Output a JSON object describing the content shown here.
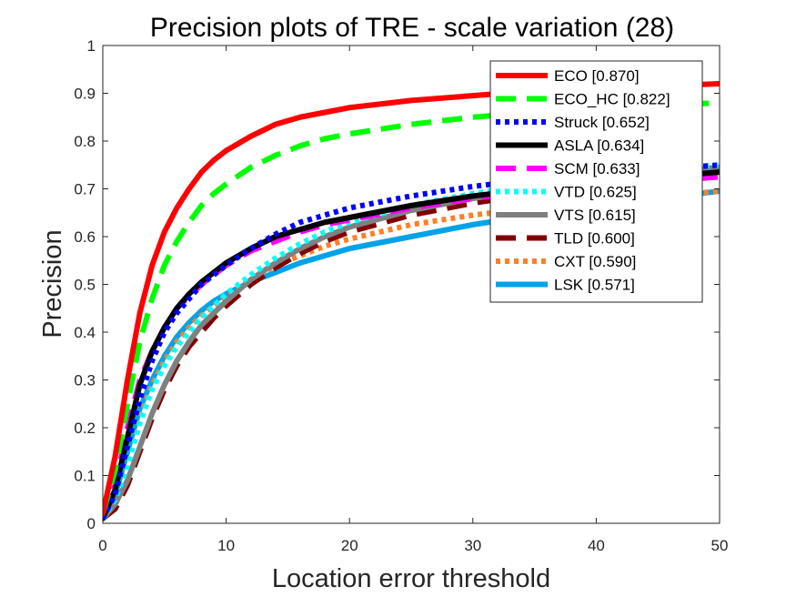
{
  "chart_data": {
    "type": "line",
    "title": "Precision plots of TRE - scale variation (28)",
    "xlabel": "Location error threshold",
    "ylabel": "Precision",
    "xlim": [
      0,
      50
    ],
    "ylim": [
      0,
      1
    ],
    "xticks": [
      0,
      10,
      20,
      30,
      40,
      50
    ],
    "yticks": [
      0,
      0.1,
      0.2,
      0.3,
      0.4,
      0.5,
      0.6,
      0.7,
      0.8,
      0.9,
      1
    ],
    "ytick_labels": [
      "0",
      "0.1",
      "0.2",
      "0.3",
      "0.4",
      "0.5",
      "0.6",
      "0.7",
      "0.8",
      "0.9",
      "1"
    ],
    "grid": false,
    "legend_position": "top-right",
    "x": [
      0,
      1,
      2,
      3,
      4,
      5,
      6,
      7,
      8,
      9,
      10,
      12,
      14,
      16,
      18,
      20,
      25,
      30,
      35,
      40,
      45,
      50
    ],
    "series": [
      {
        "name": "ECO [0.870]",
        "color": "#ff0000",
        "dash": "solid",
        "values": [
          0.02,
          0.14,
          0.3,
          0.44,
          0.54,
          0.61,
          0.66,
          0.7,
          0.735,
          0.76,
          0.78,
          0.81,
          0.835,
          0.85,
          0.86,
          0.87,
          0.885,
          0.895,
          0.905,
          0.91,
          0.915,
          0.92
        ]
      },
      {
        "name": "ECO_HC [0.822]",
        "color": "#00ff00",
        "dash": "dashed",
        "values": [
          0.02,
          0.11,
          0.25,
          0.38,
          0.47,
          0.54,
          0.59,
          0.63,
          0.665,
          0.69,
          0.71,
          0.745,
          0.77,
          0.79,
          0.805,
          0.815,
          0.835,
          0.85,
          0.86,
          0.87,
          0.875,
          0.88
        ]
      },
      {
        "name": "Struck [0.652]",
        "color": "#0000ff",
        "dash": "dotted",
        "values": [
          0.01,
          0.06,
          0.16,
          0.26,
          0.34,
          0.4,
          0.44,
          0.47,
          0.5,
          0.52,
          0.54,
          0.575,
          0.605,
          0.63,
          0.645,
          0.66,
          0.685,
          0.705,
          0.72,
          0.73,
          0.74,
          0.75
        ]
      },
      {
        "name": "ASLA [0.634]",
        "color": "#000000",
        "dash": "solid",
        "values": [
          0.01,
          0.07,
          0.18,
          0.29,
          0.36,
          0.41,
          0.45,
          0.48,
          0.505,
          0.525,
          0.545,
          0.575,
          0.6,
          0.615,
          0.63,
          0.64,
          0.665,
          0.685,
          0.7,
          0.715,
          0.725,
          0.735
        ]
      },
      {
        "name": "SCM [0.633]",
        "color": "#ff00ff",
        "dash": "dashed",
        "values": [
          0.01,
          0.08,
          0.2,
          0.3,
          0.36,
          0.41,
          0.45,
          0.475,
          0.5,
          0.52,
          0.54,
          0.57,
          0.59,
          0.61,
          0.625,
          0.635,
          0.66,
          0.68,
          0.695,
          0.705,
          0.715,
          0.725
        ]
      },
      {
        "name": "VTD [0.625]",
        "color": "#00ffff",
        "dash": "dotted",
        "values": [
          0.01,
          0.05,
          0.12,
          0.21,
          0.28,
          0.33,
          0.37,
          0.4,
          0.43,
          0.455,
          0.48,
          0.52,
          0.555,
          0.585,
          0.61,
          0.63,
          0.665,
          0.69,
          0.71,
          0.725,
          0.74,
          0.75
        ]
      },
      {
        "name": "VTS [0.615]",
        "color": "#808080",
        "dash": "solid",
        "values": [
          0.01,
          0.04,
          0.09,
          0.16,
          0.23,
          0.29,
          0.34,
          0.38,
          0.415,
          0.44,
          0.465,
          0.51,
          0.545,
          0.575,
          0.6,
          0.62,
          0.655,
          0.68,
          0.7,
          0.72,
          0.735,
          0.745
        ]
      },
      {
        "name": "TLD [0.600]",
        "color": "#800000",
        "dash": "dashed",
        "values": [
          0.01,
          0.03,
          0.08,
          0.15,
          0.22,
          0.28,
          0.33,
          0.37,
          0.4,
          0.43,
          0.455,
          0.5,
          0.535,
          0.565,
          0.59,
          0.61,
          0.645,
          0.67,
          0.69,
          0.705,
          0.72,
          0.73
        ]
      },
      {
        "name": "CXT [0.590]",
        "color": "#ff7f27",
        "dash": "dotted",
        "values": [
          0.01,
          0.05,
          0.13,
          0.22,
          0.29,
          0.34,
          0.38,
          0.41,
          0.435,
          0.455,
          0.475,
          0.51,
          0.54,
          0.56,
          0.58,
          0.595,
          0.625,
          0.645,
          0.66,
          0.675,
          0.685,
          0.695
        ]
      },
      {
        "name": "LSK [0.571]",
        "color": "#00a2e8",
        "dash": "solid",
        "values": [
          0.01,
          0.06,
          0.15,
          0.24,
          0.3,
          0.35,
          0.39,
          0.42,
          0.445,
          0.465,
          0.48,
          0.505,
          0.525,
          0.545,
          0.56,
          0.575,
          0.6,
          0.625,
          0.645,
          0.665,
          0.68,
          0.695
        ]
      }
    ]
  }
}
